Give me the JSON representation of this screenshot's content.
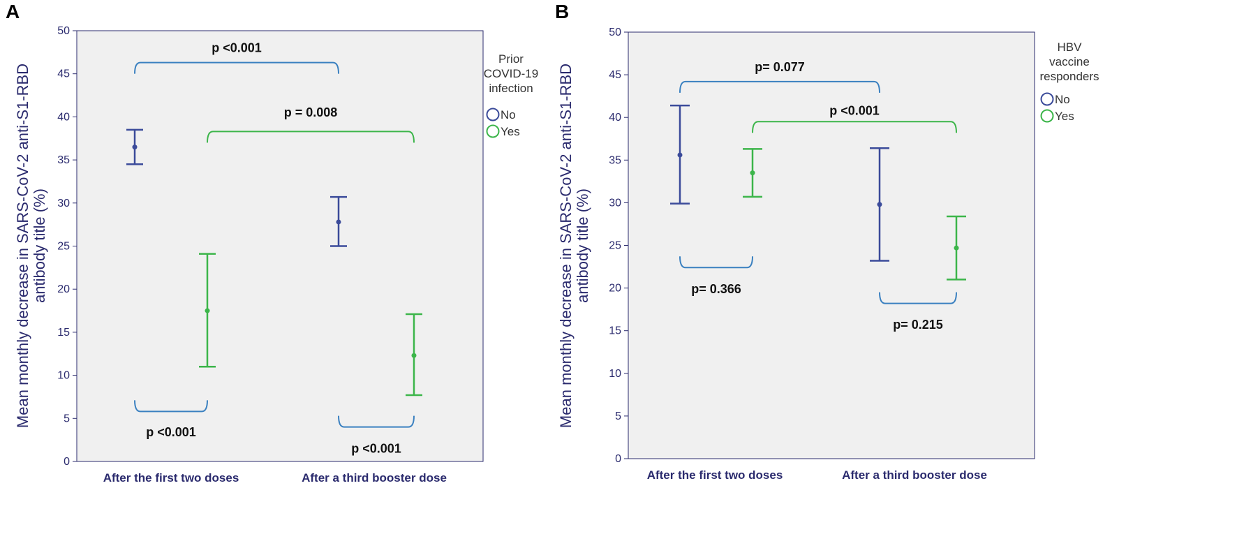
{
  "colors": {
    "no": "#3b4b9a",
    "yes": "#3cb54a",
    "plot_bg": "#f0f0f0",
    "axis": "#2b2b6e",
    "bracket_blue": "#3a80c0"
  },
  "chart_data": [
    {
      "panel": "A",
      "type": "errorbar",
      "ylabel": "Mean monthly decrease in SARS-CoV-2 anti-S1-RBD antibody title (%)",
      "ylabel_line1": "Mean monthly decrease in SARS-CoV-2 anti-S1-RBD",
      "ylabel_line2": "antibody title (%)",
      "ylim": [
        0,
        50
      ],
      "yticks": [
        0,
        5,
        10,
        15,
        20,
        25,
        30,
        35,
        40,
        45,
        50
      ],
      "categories": [
        "After the first two doses",
        "After a third booster dose"
      ],
      "legend": {
        "title_lines": [
          "Prior",
          "COVID-19",
          "infection"
        ],
        "items": [
          {
            "label": "No",
            "key": "no"
          },
          {
            "label": "Yes",
            "key": "yes"
          }
        ]
      },
      "series": [
        {
          "name": "No",
          "key": "no",
          "points": [
            {
              "mean": 36.5,
              "lo": 34.5,
              "hi": 38.5
            },
            {
              "mean": 27.8,
              "lo": 25.0,
              "hi": 30.7
            }
          ]
        },
        {
          "name": "Yes",
          "key": "yes",
          "points": [
            {
              "mean": 17.5,
              "lo": 11.0,
              "hi": 24.1
            },
            {
              "mean": 12.3,
              "lo": 7.7,
              "hi": 17.1
            }
          ]
        }
      ],
      "annotations": [
        {
          "label": "p <0.001",
          "from": [
            0,
            "no"
          ],
          "to": [
            1,
            "no"
          ],
          "y": 46.3,
          "dir": "down",
          "color": "bracket_blue",
          "text_y": 48.0
        },
        {
          "label": "p = 0.008",
          "from": [
            0,
            "yes"
          ],
          "to": [
            1,
            "yes"
          ],
          "y": 38.3,
          "dir": "down",
          "color": "yes",
          "text_y": 40.5
        },
        {
          "label": "p <0.001",
          "from": [
            0,
            "no"
          ],
          "to": [
            0,
            "yes"
          ],
          "y": 5.8,
          "dir": "up",
          "color": "bracket_blue",
          "text_y": 3.4
        },
        {
          "label": "p <0.001",
          "from": [
            1,
            "no"
          ],
          "to": [
            1,
            "yes"
          ],
          "y": 4.0,
          "dir": "up",
          "color": "bracket_blue",
          "text_y": 1.5
        }
      ]
    },
    {
      "panel": "B",
      "type": "errorbar",
      "ylabel": "Mean monthly decrease in SARS-CoV-2 anti-S1-RBD antibody title (%)",
      "ylabel_line1": "Mean monthly decrease in SARS-CoV-2 anti-S1-RBD",
      "ylabel_line2": "antibody title (%)",
      "ylim": [
        0,
        50
      ],
      "yticks": [
        0,
        5,
        10,
        15,
        20,
        25,
        30,
        35,
        40,
        45,
        50
      ],
      "categories": [
        "After the first two doses",
        "After a third booster dose"
      ],
      "legend": {
        "title_lines": [
          "HBV",
          "vaccine",
          "responders"
        ],
        "items": [
          {
            "label": "No",
            "key": "no"
          },
          {
            "label": "Yes",
            "key": "yes"
          }
        ]
      },
      "series": [
        {
          "name": "No",
          "key": "no",
          "points": [
            {
              "mean": 35.6,
              "lo": 29.9,
              "hi": 41.4
            },
            {
              "mean": 29.8,
              "lo": 23.2,
              "hi": 36.4
            }
          ]
        },
        {
          "name": "Yes",
          "key": "yes",
          "points": [
            {
              "mean": 33.5,
              "lo": 30.7,
              "hi": 36.3
            },
            {
              "mean": 24.7,
              "lo": 21.0,
              "hi": 28.4
            }
          ]
        }
      ],
      "annotations": [
        {
          "label": "p= 0.077",
          "from": [
            0,
            "no"
          ],
          "to": [
            1,
            "no"
          ],
          "y": 44.2,
          "dir": "down",
          "color": "bracket_blue",
          "text_y": 45.9
        },
        {
          "label": "p <0.001",
          "from": [
            0,
            "yes"
          ],
          "to": [
            1,
            "yes"
          ],
          "y": 39.5,
          "dir": "down",
          "color": "yes",
          "text_y": 40.8
        },
        {
          "label": "p= 0.366",
          "from": [
            0,
            "no"
          ],
          "to": [
            0,
            "yes"
          ],
          "y": 22.4,
          "dir": "up",
          "color": "bracket_blue",
          "text_y": 19.9
        },
        {
          "label": "p= 0.215",
          "from": [
            1,
            "no"
          ],
          "to": [
            1,
            "yes"
          ],
          "y": 18.2,
          "dir": "up",
          "color": "bracket_blue",
          "text_y": 15.7
        }
      ]
    }
  ]
}
